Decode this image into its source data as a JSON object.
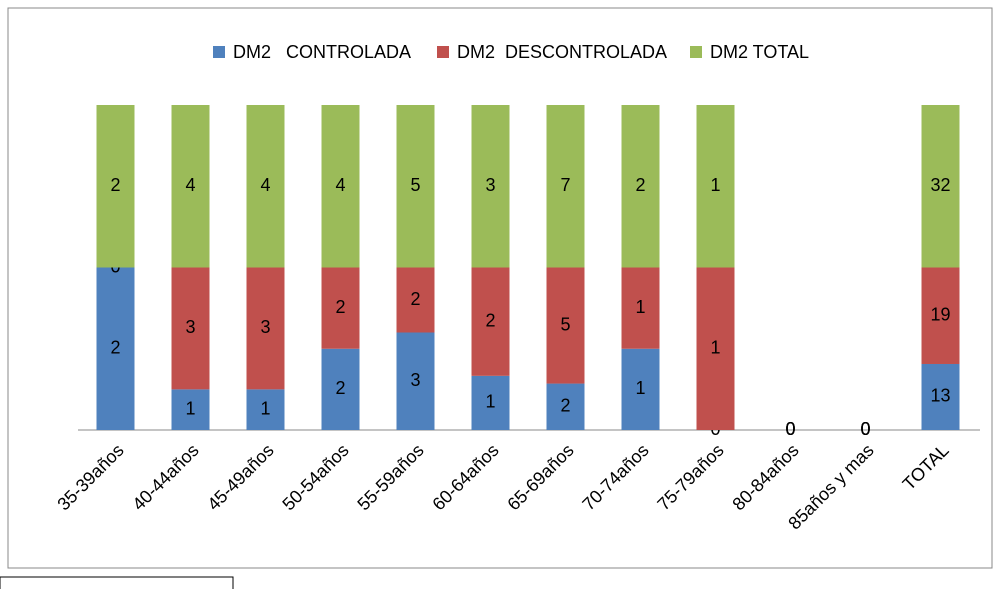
{
  "chart_data": {
    "type": "bar",
    "stacked": "percent",
    "categories": [
      "35-39años",
      "40-44años",
      "45-49años",
      "50-54años",
      "55-59años",
      "60-64años",
      "65-69años",
      "70-74años",
      "75-79años",
      "80-84años",
      "85años y mas",
      "TOTAL"
    ],
    "series": [
      {
        "name": "DM2   CONTROLADA",
        "color": "#4f81bd",
        "values": [
          2,
          1,
          1,
          2,
          3,
          1,
          2,
          1,
          0,
          0,
          0,
          13
        ]
      },
      {
        "name": "DM2  DESCONTROLADA",
        "color": "#c0504d",
        "values": [
          0,
          3,
          3,
          2,
          2,
          2,
          5,
          1,
          1,
          0,
          0,
          19
        ]
      },
      {
        "name": "DM2 TOTAL",
        "color": "#9bbb59",
        "values": [
          2,
          4,
          4,
          4,
          5,
          3,
          7,
          2,
          1,
          0,
          0,
          32
        ]
      }
    ],
    "legend": "top"
  }
}
